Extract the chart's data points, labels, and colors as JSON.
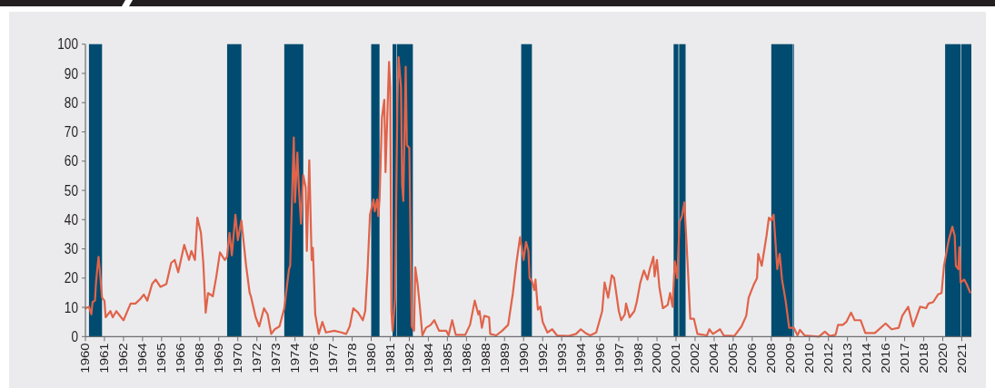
{
  "chart_data": {
    "type": "line",
    "x": [
      "1960-01",
      "1960-04",
      "1960-06",
      "1960-07",
      "1960-09",
      "1960-10",
      "1960-12",
      "1961-01",
      "1961-03",
      "1961-05",
      "1961-06",
      "1961-10",
      "1961-12",
      "1962-03",
      "1962-07",
      "1962-09",
      "1963-03",
      "1963-07",
      "1963-11",
      "1964-02",
      "1964-05",
      "1964-09",
      "1964-12",
      "1965-04",
      "1965-09",
      "1966-01",
      "1966-04",
      "1966-07",
      "1966-12",
      "1967-04",
      "1967-06",
      "1967-09",
      "1967-11",
      "1968-02",
      "1968-04",
      "1968-06",
      "1968-08",
      "1968-12",
      "1969-03",
      "1969-06",
      "1969-10",
      "1969-12",
      "1970-02",
      "1970-04",
      "1970-07",
      "1970-09",
      "1970-12",
      "1971-04",
      "1971-07",
      "1971-08",
      "1971-12",
      "1972-03",
      "1972-07",
      "1972-10",
      "1973-01",
      "1973-04",
      "1973-08",
      "1973-12",
      "1974-04",
      "1974-05",
      "1974-07",
      "1974-08",
      "1974-09",
      "1974-11",
      "1974-12",
      "1975-02",
      "1975-04",
      "1975-06",
      "1975-07",
      "1975-09",
      "1975-11",
      "1975-12",
      "1976-02",
      "1976-05",
      "1976-08",
      "1976-11",
      "1977-06",
      "1977-12",
      "1978-04",
      "1978-07",
      "1978-10",
      "1979-02",
      "1979-06",
      "1979-08",
      "1979-10",
      "1979-12",
      "1980-03",
      "1980-04",
      "1980-06",
      "1980-07",
      "1980-08",
      "1980-10",
      "1980-12",
      "1981-01",
      "1981-04",
      "1981-05",
      "1981-06",
      "1981-07",
      "1981-09",
      "1981-11",
      "1981-12",
      "1982-02",
      "1982-03",
      "1982-04",
      "1982-06",
      "1982-07",
      "1982-09",
      "1982-11",
      "1983-01",
      "1983-02",
      "1983-04",
      "1983-06",
      "1983-08",
      "1983-11",
      "1984-03",
      "1984-06",
      "1984-10",
      "1985-04",
      "1985-06",
      "1985-09",
      "1985-12",
      "1986-08",
      "1986-12",
      "1987-04",
      "1987-07",
      "1987-08",
      "1987-10",
      "1987-12",
      "1988-04",
      "1988-05",
      "1988-10",
      "1989-03",
      "1989-08",
      "1989-12",
      "1990-03",
      "1990-06",
      "1990-09",
      "1990-11",
      "1991-01",
      "1991-02",
      "1991-04",
      "1991-06",
      "1991-07",
      "1991-09",
      "1991-11",
      "1992-01",
      "1992-05",
      "1992-09",
      "1993-01",
      "1993-11",
      "1994-05",
      "1994-09",
      "1995-01",
      "1995-05",
      "1995-10",
      "1996-03",
      "1996-05",
      "1996-08",
      "1996-11",
      "1997-01",
      "1997-05",
      "1997-07",
      "1997-10",
      "1997-11",
      "1998-02",
      "1998-06",
      "1998-08",
      "1998-11",
      "1999-02",
      "1999-05",
      "1999-07",
      "1999-10",
      "1999-11",
      "2000-01",
      "2000-03",
      "2000-06",
      "2000-10",
      "2000-12",
      "2001-02",
      "2001-04",
      "2001-06",
      "2001-08",
      "2001-10",
      "2001-12",
      "2002-03",
      "2002-05",
      "2002-08",
      "2002-11",
      "2003-07",
      "2003-09",
      "2003-12",
      "2004-06",
      "2004-09",
      "2005-06",
      "2005-12",
      "2006-04",
      "2006-06",
      "2006-10",
      "2007-01",
      "2007-02",
      "2007-05",
      "2007-09",
      "2007-11",
      "2008-01",
      "2008-03",
      "2008-06",
      "2008-08",
      "2008-10",
      "2009-01",
      "2009-04",
      "2009-08",
      "2009-11",
      "2010-01",
      "2010-05",
      "2011-05",
      "2011-10",
      "2012-02",
      "2012-07",
      "2012-09",
      "2013-01",
      "2013-04",
      "2013-08",
      "2013-11",
      "2014-04",
      "2014-08",
      "2015-04",
      "2016-01",
      "2016-06",
      "2016-12",
      "2017-03",
      "2017-08",
      "2017-12",
      "2018-06",
      "2018-11",
      "2019-01",
      "2019-05",
      "2019-09",
      "2019-12",
      "2020-02",
      "2020-06",
      "2020-09",
      "2020-11",
      "2020-12",
      "2021-02",
      "2021-03",
      "2021-04",
      "2021-07",
      "2021-09",
      "2021-12"
    ],
    "series": [
      {
        "color": "#e0634a",
        "values": [
          9.7,
          10.2,
          7.6,
          11.8,
          12.3,
          19,
          27.3,
          23,
          13.3,
          12.3,
          6.6,
          8.7,
          6.6,
          8.7,
          6.6,
          5.6,
          11.3,
          11.3,
          12.8,
          14.4,
          12.3,
          18,
          19.5,
          17,
          18,
          25.2,
          26.2,
          22,
          31.4,
          26.2,
          29.3,
          26.2,
          40.7,
          35.5,
          25.2,
          8.2,
          14.9,
          13.8,
          20.6,
          28.8,
          26.2,
          27.3,
          35.5,
          27.8,
          41.7,
          33,
          39.7,
          24.2,
          14.9,
          13.8,
          6.6,
          3.5,
          9.7,
          7.6,
          0.9,
          2.5,
          3.5,
          9.7,
          23.1,
          24.2,
          54.1,
          68.1,
          45.9,
          62.9,
          53.1,
          38.6,
          55.2,
          51,
          29.3,
          60.3,
          26.2,
          30.4,
          7.6,
          0.9,
          5,
          1.4,
          2,
          1.4,
          0.9,
          3.5,
          9.7,
          8.2,
          5.6,
          8.7,
          23.1,
          41.7,
          46.9,
          42.8,
          46.9,
          41.2,
          46.9,
          74.8,
          81,
          56.2,
          93.9,
          85.1,
          8.7,
          2,
          12.8,
          80,
          95.5,
          85.1,
          52.1,
          46.4,
          92.3,
          65.5,
          64.5,
          3.5,
          2,
          23.7,
          18,
          9.7,
          0.4,
          3,
          4,
          5.6,
          2,
          2,
          0.4,
          5.6,
          0.6,
          0.6,
          4,
          12.3,
          7.6,
          8.7,
          3,
          7.1,
          6.6,
          0.9,
          0.4,
          2,
          4,
          14.9,
          25.2,
          34,
          26.2,
          32.4,
          29.3,
          20,
          19,
          15.9,
          19.5,
          9.2,
          10.3,
          5,
          1.4,
          2.5,
          0.4,
          0.2,
          0.9,
          2.5,
          1.2,
          0.4,
          1.4,
          8.7,
          18.5,
          13.3,
          21,
          20,
          8.7,
          5.6,
          7.6,
          11.3,
          6.6,
          8.7,
          11.8,
          18.5,
          22.6,
          19.5,
          23.1,
          27.3,
          20.6,
          26.2,
          17,
          9.7,
          10.8,
          14.9,
          10.2,
          25.7,
          20,
          39.2,
          41.3,
          45.9,
          23.1,
          6.1,
          6.1,
          0.9,
          0.4,
          2.5,
          0.9,
          2.5,
          0.4,
          0.2,
          3.5,
          7.1,
          13.3,
          17.5,
          20,
          28.3,
          24.2,
          34.5,
          40.7,
          39.7,
          41.7,
          23.1,
          28.3,
          19.5,
          12.3,
          3,
          3,
          0.4,
          2.3,
          0.4,
          0,
          1.7,
          0.2,
          0.6,
          4,
          4,
          5,
          8.2,
          5.6,
          5.6,
          1.2,
          1.2,
          4.5,
          2.5,
          3,
          7.1,
          10.2,
          3.5,
          10.2,
          9.7,
          11.3,
          11.8,
          14.4,
          14.9,
          24.2,
          33,
          37.6,
          34.5,
          24.2,
          23.1,
          30.6,
          18.5,
          19.5,
          18,
          15.1
        ]
      }
    ],
    "bands": [
      {
        "axis": "x",
        "from": "1960-04",
        "to": "1961-03",
        "color": "#004b6f"
      },
      {
        "axis": "x",
        "from": "1969-12",
        "to": "1970-12",
        "color": "#004b6f"
      },
      {
        "axis": "x",
        "from": "1973-12",
        "to": "1975-04",
        "color": "#004b6f"
      },
      {
        "axis": "x",
        "from": "1980-01",
        "to": "1980-08",
        "color": "#004b6f"
      },
      {
        "axis": "x",
        "from": "1981-07",
        "to": "1981-10",
        "color": "#004b6f"
      },
      {
        "axis": "x",
        "from": "1981-10-15",
        "to": "1982-12",
        "color": "#004b6f"
      },
      {
        "axis": "x",
        "from": "1990-07",
        "to": "1991-04",
        "color": "#004b6f"
      },
      {
        "axis": "x",
        "from": "2001-03",
        "to": "2001-07",
        "color": "#004b6f"
      },
      {
        "axis": "x",
        "from": "2001-07-20",
        "to": "2002-01",
        "color": "#004b6f"
      },
      {
        "axis": "x",
        "from": "2008-01",
        "to": "2009-07",
        "color": "#004b6f"
      },
      {
        "axis": "x",
        "from": "2009-07-10",
        "to": "2009-08",
        "color": "#004b6f"
      },
      {
        "axis": "x",
        "from": "2020-03",
        "to": "2021-04",
        "color": "#004b6f"
      },
      {
        "axis": "x",
        "from": "2021-04-15",
        "to": "2022-01",
        "color": "#004b6f"
      }
    ],
    "xlim": [
      "1960-01",
      "2022-01"
    ],
    "xticks": [
      {
        "value": "1960-01",
        "label": "1960"
      },
      {
        "value": "1961-05",
        "label": "1961"
      },
      {
        "value": "1962-09",
        "label": "1962"
      },
      {
        "value": "1964-01",
        "label": "1964"
      },
      {
        "value": "1965-05",
        "label": "1965"
      },
      {
        "value": "1966-09",
        "label": "1966"
      },
      {
        "value": "1968-01",
        "label": "1968"
      },
      {
        "value": "1969-05",
        "label": "1969"
      },
      {
        "value": "1970-09",
        "label": "1970"
      },
      {
        "value": "1972-01",
        "label": "1972"
      },
      {
        "value": "1973-05",
        "label": "1973"
      },
      {
        "value": "1974-09",
        "label": "1974"
      },
      {
        "value": "1976-01",
        "label": "1976"
      },
      {
        "value": "1977-05",
        "label": "1977"
      },
      {
        "value": "1978-09",
        "label": "1978"
      },
      {
        "value": "1980-01",
        "label": "1980"
      },
      {
        "value": "1981-05",
        "label": "1981"
      },
      {
        "value": "1982-09",
        "label": "1982"
      },
      {
        "value": "1984-01",
        "label": "1984"
      },
      {
        "value": "1985-05",
        "label": "1985"
      },
      {
        "value": "1986-09",
        "label": "1986"
      },
      {
        "value": "1988-01",
        "label": "1988"
      },
      {
        "value": "1989-05",
        "label": "1989"
      },
      {
        "value": "1990-09",
        "label": "1990"
      },
      {
        "value": "1992-01",
        "label": "1992"
      },
      {
        "value": "1993-05",
        "label": "1993"
      },
      {
        "value": "1994-09",
        "label": "1994"
      },
      {
        "value": "1996-01",
        "label": "1996"
      },
      {
        "value": "1997-05",
        "label": "1997"
      },
      {
        "value": "1998-09",
        "label": "1998"
      },
      {
        "value": "2000-01",
        "label": "2000"
      },
      {
        "value": "2001-05",
        "label": "2001"
      },
      {
        "value": "2002-09",
        "label": "2002"
      },
      {
        "value": "2004-01",
        "label": "2004"
      },
      {
        "value": "2005-05",
        "label": "2005"
      },
      {
        "value": "2006-09",
        "label": "2006"
      },
      {
        "value": "2008-01",
        "label": "2008"
      },
      {
        "value": "2009-05",
        "label": "2009"
      },
      {
        "value": "2010-09",
        "label": "2010"
      },
      {
        "value": "2012-01",
        "label": "2012"
      },
      {
        "value": "2013-05",
        "label": "2013"
      },
      {
        "value": "2014-09",
        "label": "2014"
      },
      {
        "value": "2016-01",
        "label": "2016"
      },
      {
        "value": "2017-05",
        "label": "2017"
      },
      {
        "value": "2018-09",
        "label": "2018"
      },
      {
        "value": "2020-01",
        "label": "2020"
      },
      {
        "value": "2021-05",
        "label": "2021"
      }
    ],
    "ylim": [
      0,
      100
    ],
    "yticks": [
      0,
      10,
      20,
      30,
      40,
      50,
      60,
      70,
      80,
      90,
      100
    ],
    "marker": "none",
    "line_style": "solid"
  }
}
